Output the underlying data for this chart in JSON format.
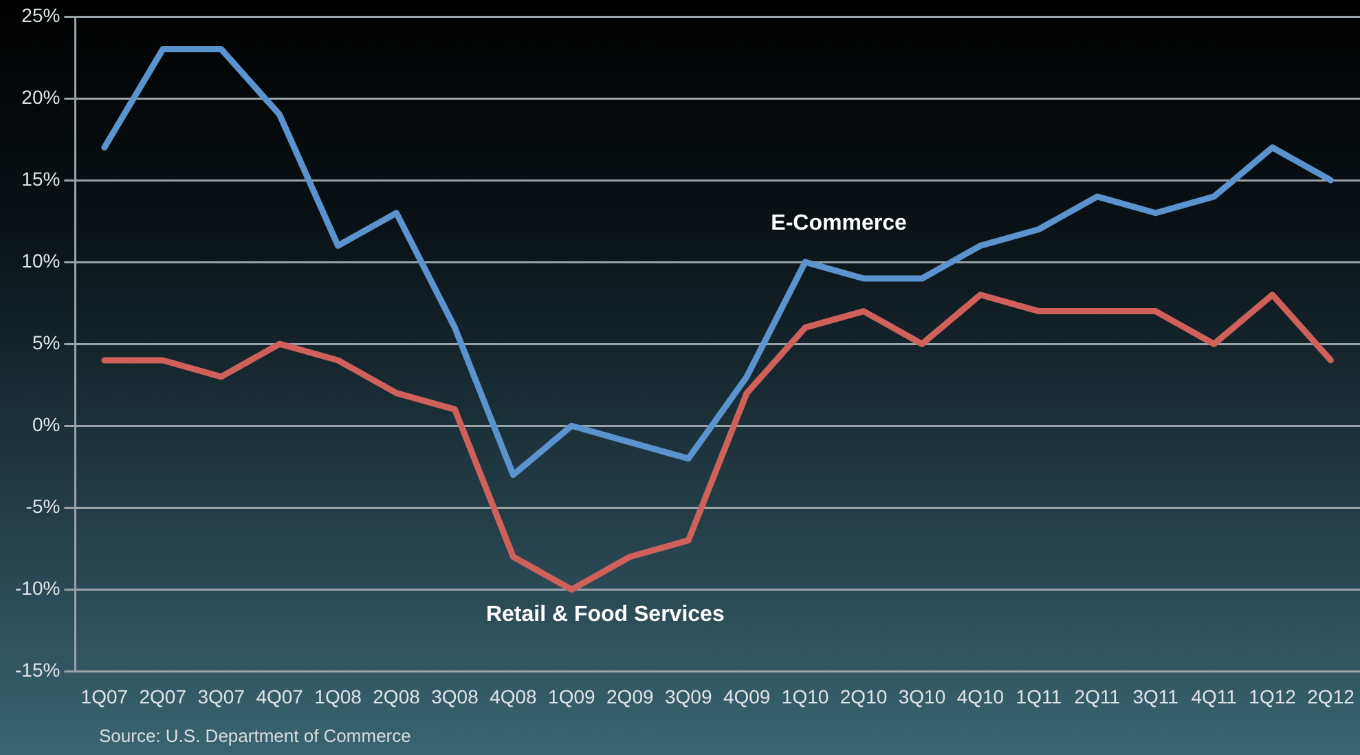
{
  "chart_data": {
    "type": "line",
    "categories": [
      "1Q07",
      "2Q07",
      "3Q07",
      "4Q07",
      "1Q08",
      "2Q08",
      "3Q08",
      "4Q08",
      "1Q09",
      "2Q09",
      "3Q09",
      "4Q09",
      "1Q10",
      "2Q10",
      "3Q10",
      "4Q10",
      "1Q11",
      "2Q11",
      "3Q11",
      "4Q11",
      "1Q12",
      "2Q12"
    ],
    "series": [
      {
        "name": "E-Commerce",
        "color": "#5b93cf",
        "values": [
          17,
          23,
          23,
          19,
          11,
          13,
          6,
          -3,
          0,
          -1,
          -2,
          3,
          10,
          9,
          9,
          11,
          12,
          14,
          13,
          14,
          17,
          15
        ]
      },
      {
        "name": "Retail & Food Services",
        "color": "#d0605a",
        "values": [
          4,
          4,
          3,
          5,
          4,
          2,
          1,
          -8,
          -10,
          -8,
          -7,
          2,
          6,
          7,
          5,
          8,
          7,
          7,
          7,
          5,
          8,
          4
        ]
      }
    ],
    "ylim": [
      -15,
      25
    ],
    "yticks": [
      {
        "value": -15,
        "label": "-15%"
      },
      {
        "value": -10,
        "label": "-10%"
      },
      {
        "value": -5,
        "label": "-5%"
      },
      {
        "value": 0,
        "label": "0%"
      },
      {
        "value": 5,
        "label": "5%"
      },
      {
        "value": 10,
        "label": "10%"
      },
      {
        "value": 15,
        "label": "15%"
      },
      {
        "value": 20,
        "label": "20%"
      },
      {
        "value": 25,
        "label": "25%"
      }
    ],
    "grid": "y",
    "legend": false,
    "marker": "none",
    "line_style": "solid",
    "annotations": [
      "Source: U.S. Department of Commerce"
    ]
  }
}
